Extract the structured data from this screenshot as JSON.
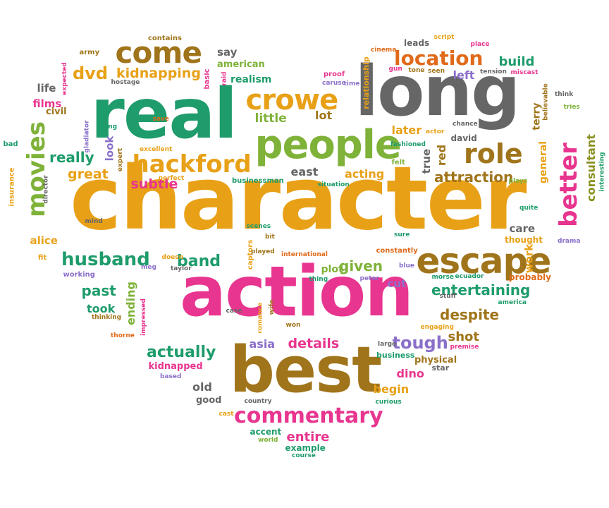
{
  "colors": {
    "orange": "#e8a117",
    "green": "#1e9c6b",
    "gray": "#666666",
    "brown": "#a0741a",
    "pink": "#e8358f",
    "dkorange": "#e06a1a",
    "lime": "#7fb239",
    "purple": "#8a6fc9",
    "olive": "#8a8f1f"
  },
  "words": [
    {
      "text": "character",
      "c": "orange"
    },
    {
      "text": "action",
      "c": "pink"
    },
    {
      "text": "real",
      "c": "green"
    },
    {
      "text": "long",
      "c": "gray"
    },
    {
      "text": "best",
      "c": "brown"
    },
    {
      "text": "people",
      "c": "lime"
    },
    {
      "text": "escape",
      "c": "brown"
    },
    {
      "text": "come",
      "c": "brown"
    },
    {
      "text": "crowe",
      "c": "orange"
    },
    {
      "text": "hackford",
      "c": "orange"
    },
    {
      "text": "movies",
      "c": "lime"
    },
    {
      "text": "better",
      "c": "pink"
    },
    {
      "text": "role",
      "c": "brown"
    },
    {
      "text": "location",
      "c": "dkorange"
    },
    {
      "text": "commentary",
      "c": "pink"
    },
    {
      "text": "husband",
      "c": "green"
    },
    {
      "text": "kidnapping",
      "c": "orange"
    },
    {
      "text": "dvd",
      "c": "orange"
    },
    {
      "text": "really",
      "c": "green"
    },
    {
      "text": "great",
      "c": "orange"
    },
    {
      "text": "subtle",
      "c": "pink"
    },
    {
      "text": "attraction",
      "c": "brown"
    },
    {
      "text": "entertaining",
      "c": "green"
    },
    {
      "text": "despite",
      "c": "brown"
    },
    {
      "text": "actually",
      "c": "green"
    },
    {
      "text": "tough",
      "c": "purple"
    },
    {
      "text": "details",
      "c": "pink"
    },
    {
      "text": "band",
      "c": "green"
    },
    {
      "text": "given",
      "c": "lime"
    },
    {
      "text": "past",
      "c": "green"
    },
    {
      "text": "consultant",
      "c": "olive"
    },
    {
      "text": "build",
      "c": "green"
    },
    {
      "text": "little",
      "c": "lime"
    },
    {
      "text": "lot",
      "c": "brown"
    },
    {
      "text": "later",
      "c": "orange"
    },
    {
      "text": "acting",
      "c": "orange"
    },
    {
      "text": "east",
      "c": "gray"
    },
    {
      "text": "left",
      "c": "purple"
    },
    {
      "text": "films",
      "c": "pink"
    },
    {
      "text": "life",
      "c": "gray"
    },
    {
      "text": "civil",
      "c": "brown"
    },
    {
      "text": "say",
      "c": "gray"
    },
    {
      "text": "american",
      "c": "lime"
    },
    {
      "text": "realism",
      "c": "green"
    },
    {
      "text": "look",
      "c": "purple"
    },
    {
      "text": "alice",
      "c": "orange"
    },
    {
      "text": "dino",
      "c": "pink"
    },
    {
      "text": "old",
      "c": "gray"
    },
    {
      "text": "begin",
      "c": "orange"
    },
    {
      "text": "entire",
      "c": "pink"
    },
    {
      "text": "shot",
      "c": "brown"
    },
    {
      "text": "asia",
      "c": "purple"
    },
    {
      "text": "took",
      "c": "green"
    },
    {
      "text": "ending",
      "c": "lime"
    },
    {
      "text": "cut",
      "c": "purple"
    },
    {
      "text": "care",
      "c": "gray"
    },
    {
      "text": "work",
      "c": "orange"
    },
    {
      "text": "red",
      "c": "brown"
    },
    {
      "text": "true",
      "c": "gray"
    },
    {
      "text": "general",
      "c": "orange"
    },
    {
      "text": "terry",
      "c": "brown"
    },
    {
      "text": "kidnapped",
      "c": "pink"
    },
    {
      "text": "physical",
      "c": "brown"
    },
    {
      "text": "good",
      "c": "gray"
    },
    {
      "text": "plot",
      "c": "lime"
    },
    {
      "text": "accent",
      "c": "green"
    },
    {
      "text": "example",
      "c": "green"
    },
    {
      "text": "david",
      "c": "gray"
    },
    {
      "text": "thought",
      "c": "orange"
    },
    {
      "text": "probably",
      "c": "dkorange"
    },
    {
      "text": "business",
      "c": "green"
    },
    {
      "text": "star",
      "c": "gray"
    },
    {
      "text": "contains",
      "c": "brown"
    },
    {
      "text": "army",
      "c": "brown"
    },
    {
      "text": "expected",
      "c": "pink"
    },
    {
      "text": "hostage",
      "c": "gray"
    },
    {
      "text": "basic",
      "c": "pink"
    },
    {
      "text": "raid",
      "c": "pink"
    },
    {
      "text": "leads",
      "c": "gray"
    },
    {
      "text": "script",
      "c": "orange"
    },
    {
      "text": "place",
      "c": "pink"
    },
    {
      "text": "cinema",
      "c": "dkorange"
    },
    {
      "text": "proof",
      "c": "pink"
    },
    {
      "text": "relationship",
      "c": "orange"
    },
    {
      "text": "gun",
      "c": "pink"
    },
    {
      "text": "tone",
      "c": "brown"
    },
    {
      "text": "seen",
      "c": "brown"
    },
    {
      "text": "tension",
      "c": "gray"
    },
    {
      "text": "miscast",
      "c": "pink"
    },
    {
      "text": "caruso",
      "c": "purple"
    },
    {
      "text": "time",
      "c": "purple"
    },
    {
      "text": "believable",
      "c": "brown"
    },
    {
      "text": "think",
      "c": "gray"
    },
    {
      "text": "tries",
      "c": "lime"
    },
    {
      "text": "save",
      "c": "dkorange"
    },
    {
      "text": "going",
      "c": "green"
    },
    {
      "text": "gladiator",
      "c": "purple"
    },
    {
      "text": "bad",
      "c": "green"
    },
    {
      "text": "insurance",
      "c": "orange"
    },
    {
      "text": "director",
      "c": "gray"
    },
    {
      "text": "excellent",
      "c": "orange"
    },
    {
      "text": "expert",
      "c": "brown"
    },
    {
      "text": "perfect",
      "c": "orange"
    },
    {
      "text": "businessman",
      "c": "green"
    },
    {
      "text": "situation",
      "c": "green"
    },
    {
      "text": "felt",
      "c": "lime"
    },
    {
      "text": "fashioned",
      "c": "green"
    },
    {
      "text": "actor",
      "c": "orange"
    },
    {
      "text": "chance",
      "c": "gray"
    },
    {
      "text": "plays",
      "c": "lime"
    },
    {
      "text": "quite",
      "c": "green"
    },
    {
      "text": "drama",
      "c": "purple"
    },
    {
      "text": "interesting",
      "c": "green"
    },
    {
      "text": "mind",
      "c": "gray"
    },
    {
      "text": "fit",
      "c": "orange"
    },
    {
      "text": "scenes",
      "c": "green"
    },
    {
      "text": "bit",
      "c": "brown"
    },
    {
      "text": "captors",
      "c": "orange"
    },
    {
      "text": "played",
      "c": "brown"
    },
    {
      "text": "international",
      "c": "dkorange"
    },
    {
      "text": "sure",
      "c": "green"
    },
    {
      "text": "constantly",
      "c": "dkorange"
    },
    {
      "text": "doesn",
      "c": "orange"
    },
    {
      "text": "meg",
      "c": "purple"
    },
    {
      "text": "taylor",
      "c": "gray"
    },
    {
      "text": "working",
      "c": "purple"
    },
    {
      "text": "thing",
      "c": "green"
    },
    {
      "text": "peter",
      "c": "purple"
    },
    {
      "text": "blue",
      "c": "purple"
    },
    {
      "text": "morse",
      "c": "green"
    },
    {
      "text": "ecuador",
      "c": "green"
    },
    {
      "text": "stuff",
      "c": "gray"
    },
    {
      "text": "america",
      "c": "green"
    },
    {
      "text": "case",
      "c": "gray"
    },
    {
      "text": "romance",
      "c": "orange"
    },
    {
      "text": "wife",
      "c": "brown"
    },
    {
      "text": "won",
      "c": "brown"
    },
    {
      "text": "impressed",
      "c": "pink"
    },
    {
      "text": "thinking",
      "c": "brown"
    },
    {
      "text": "thorne",
      "c": "dkorange"
    },
    {
      "text": "engaging",
      "c": "orange"
    },
    {
      "text": "premise",
      "c": "pink"
    },
    {
      "text": "large",
      "c": "gray"
    },
    {
      "text": "based",
      "c": "purple"
    },
    {
      "text": "curious",
      "c": "green"
    },
    {
      "text": "country",
      "c": "gray"
    },
    {
      "text": "cast",
      "c": "orange"
    },
    {
      "text": "world",
      "c": "lime"
    },
    {
      "text": "course",
      "c": "green"
    }
  ]
}
